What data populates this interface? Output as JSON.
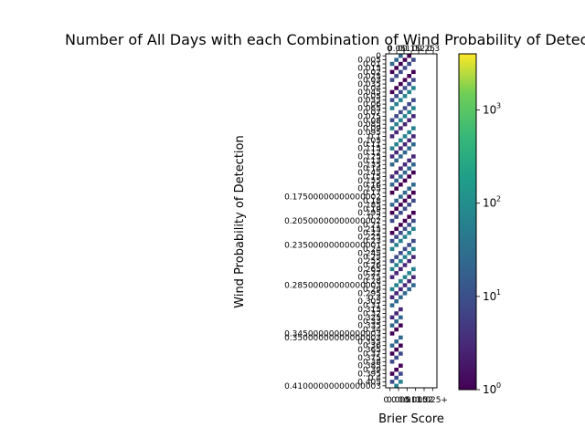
{
  "chart_data": {
    "type": "heatmap",
    "title": "Number of All Days with each Combination of Wind Probability of Detection and Brier Score",
    "xlabel": "Brier Score",
    "ylabel": "Wind Probability of Detection",
    "x_tick_labels": [
      "0.0",
      "0.005",
      "0.01",
      "0.015",
      "0.02",
      "0.025+"
    ],
    "x_top_tick_labels": [
      "0",
      "0.05",
      "0.1",
      "0.15",
      "0.2",
      "0.25",
      "0.3"
    ],
    "y_categories": [
      0,
      0.005,
      0.01,
      0.015,
      0.02,
      0.025,
      0.03,
      0.035,
      0.04,
      0.045,
      0.05,
      0.055,
      0.06,
      0.065,
      0.07,
      0.075,
      0.08,
      0.085,
      0.09,
      0.095,
      0.1,
      0.105,
      0.11,
      0.115,
      0.12,
      0.125,
      0.13,
      0.135,
      0.14,
      0.145,
      0.15,
      0.155,
      0.16,
      0.165,
      0.17,
      0.175,
      0.18,
      0.185,
      0.19,
      0.195,
      0.2,
      0.205,
      0.21,
      0.215,
      0.22,
      0.225,
      0.23,
      0.235,
      0.24,
      0.245,
      0.25,
      0.255,
      0.26,
      0.265,
      0.27,
      0.275,
      0.28,
      0.285,
      0.29,
      0.295,
      0.3,
      0.305,
      0.31,
      0.315,
      0.32,
      0.325,
      0.33,
      0.335,
      0.34,
      0.345,
      0.35,
      0.355,
      0.36,
      0.365,
      0.37,
      0.375,
      0.38,
      0.385,
      0.39,
      0.395,
      0.4,
      0.405,
      0.41
    ],
    "y_tick_labels": [
      "0",
      "0.005",
      "0.01",
      "0.015",
      "0.02",
      "0.025",
      "0.03",
      "0.035",
      "0.04",
      "0.045",
      "0.05",
      "0.055",
      "0.06",
      "0.065",
      "0.07",
      "0.075",
      "0.08",
      "0.085",
      "0.09",
      "0.095",
      "0.1",
      "0.105",
      "0.11",
      "0.115",
      "0.12",
      "0.125",
      "0.13",
      "0.135",
      "0.14",
      "0.145",
      "0.15",
      "0.155",
      "0.16",
      "0.165",
      "0.17",
      "0.17500000000000002",
      "0.18",
      "0.185",
      "0.19",
      "0.195",
      "0.2",
      "0.20500000000000002",
      "0.21",
      "0.215",
      "0.22",
      "0.225",
      "0.23",
      "0.23500000000000001",
      "0.24",
      "0.245",
      "0.25",
      "0.255",
      "0.26",
      "0.265",
      "0.27",
      "0.275",
      "0.28",
      "0.28500000000000003",
      "0.29",
      "0.295",
      "0.3",
      "0.305",
      "0.31",
      "0.315",
      "0.32",
      "0.325",
      "0.33",
      "0.335",
      "0.34",
      "0.34500000000000003",
      "0.35000000000000003",
      "0.355",
      "0.36",
      "0.365",
      "0.37",
      "0.375",
      "0.38",
      "0.385",
      "0.39",
      "0.395",
      "0.4",
      "0.405",
      "0.41000000000000003"
    ],
    "colorbar": {
      "scale": "log",
      "min": 1,
      "max": 4000,
      "ticks": [
        1,
        10,
        100,
        1000
      ],
      "tick_labels": [
        "10",
        "10",
        "10",
        "10"
      ],
      "tick_exponents": [
        "0",
        "1",
        "2",
        "3"
      ],
      "colormap": "viridis"
    },
    "grid": false,
    "legend": "none"
  }
}
